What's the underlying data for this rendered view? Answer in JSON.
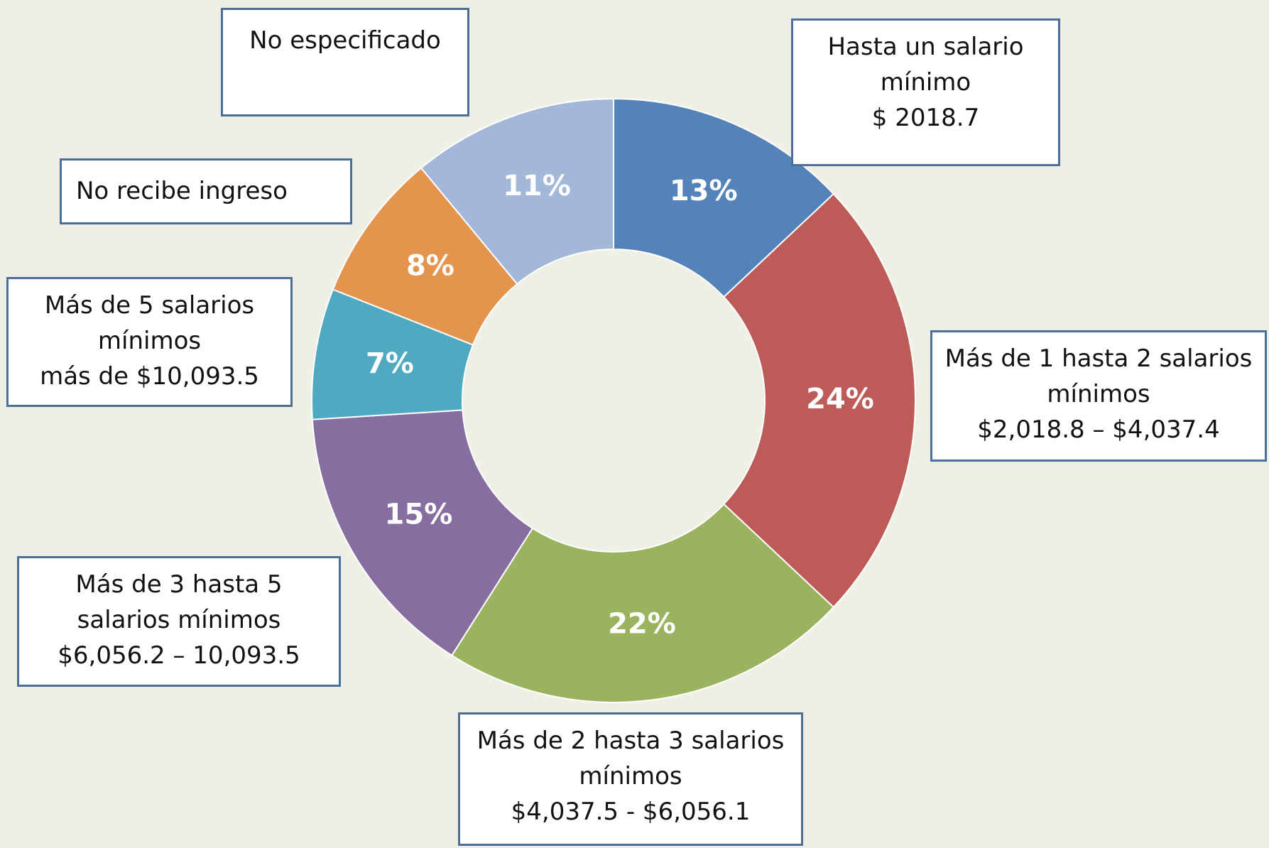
{
  "chart_data": {
    "type": "donut",
    "categories": [
      "Hasta un salario\nmínimo\n$ 2018.7",
      "Más de 1 hasta 2 salarios\nmínimos\n$2,018.8 –  $4,037.4",
      "Más de 2 hasta 3 salarios\nmínimos\n$4,037.5 -  $6,056.1",
      "Más de 3 hasta 5\nsalarios mínimos\n$6,056.2 – 10,093.5",
      "Más de 5 salarios\nmínimos\nmás de $10,093.5",
      "No recibe ingreso",
      "No especificado"
    ],
    "values": [
      13,
      24,
      22,
      15,
      7,
      8,
      11
    ],
    "value_labels": [
      "13%",
      "24%",
      "22%",
      "15%",
      "7%",
      "8%",
      "11%"
    ],
    "colors": [
      "#5383b8",
      "#bc5b57",
      "#9bb35f",
      "#866fa0",
      "#4fa9c0",
      "#e3954d",
      "#a3b7d9"
    ]
  }
}
